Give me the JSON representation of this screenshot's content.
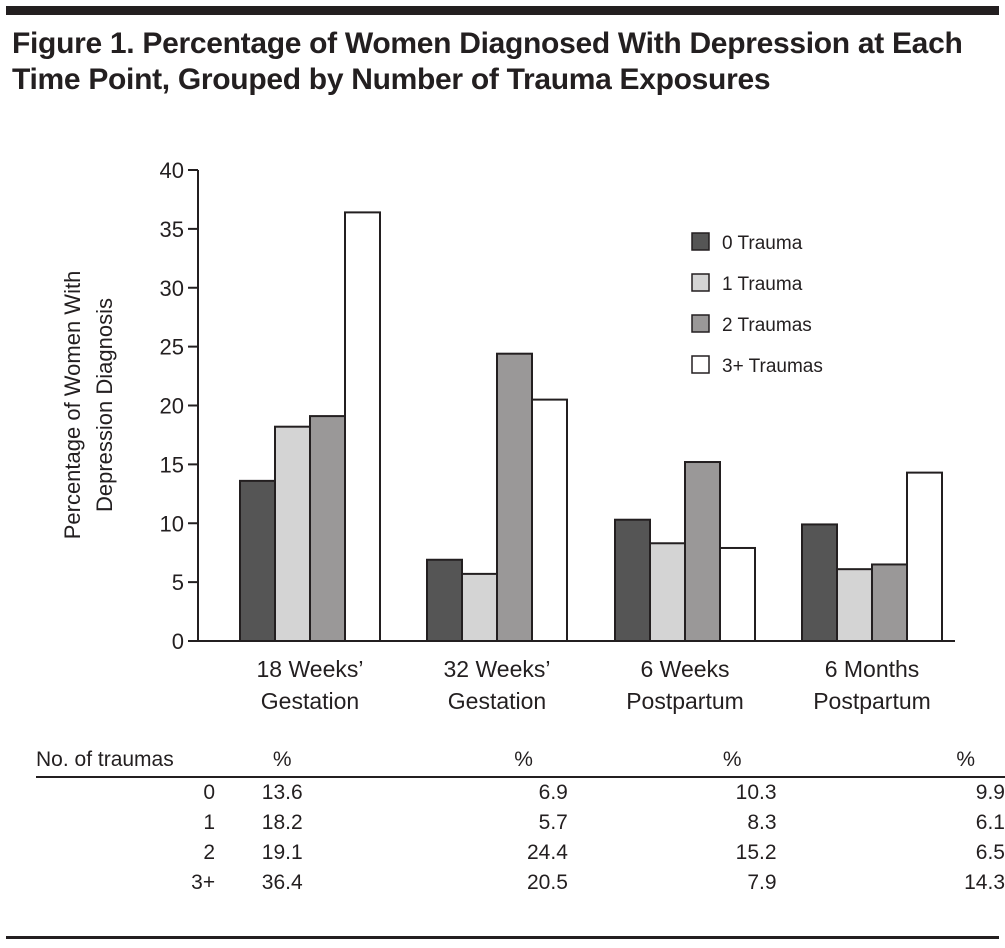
{
  "figure": {
    "title": "Figure 1. Percentage of Women Diagnosed With Depression at Each Time Point, Grouped by Number of Trauma Exposures"
  },
  "chart_data": {
    "type": "bar",
    "title": "Figure 1. Percentage of Women Diagnosed With Depression at Each Time Point, Grouped by Number of Trauma Exposures",
    "xlabel": "",
    "ylabel": "Percentage of Women With Depression Diagnosis",
    "ylabel_lines": [
      "Percentage of Women With",
      "Depression Diagnosis"
    ],
    "ylim": [
      0,
      40
    ],
    "yticks": [
      0,
      5,
      10,
      15,
      20,
      25,
      30,
      35,
      40
    ],
    "grid": false,
    "legend_position": "top-right",
    "categories": [
      "18 Weeks' Gestation",
      "32 Weeks' Gestation",
      "6 Weeks Postpartum",
      "6 Months Postpartum"
    ],
    "category_lines": [
      [
        "18 Weeks’",
        "Gestation"
      ],
      [
        "32 Weeks’",
        "Gestation"
      ],
      [
        "6 Weeks",
        "Postpartum"
      ],
      [
        "6 Months",
        "Postpartum"
      ]
    ],
    "series": [
      {
        "name": "0 Trauma",
        "color": "#555555",
        "values": [
          13.6,
          6.9,
          10.3,
          9.9
        ]
      },
      {
        "name": "1 Trauma",
        "color": "#d4d4d4",
        "values": [
          18.2,
          5.7,
          8.3,
          6.1
        ]
      },
      {
        "name": "2 Traumas",
        "color": "#9a9898",
        "values": [
          19.1,
          24.4,
          15.2,
          6.5
        ]
      },
      {
        "name": "3+ Traumas",
        "color": "#ffffff",
        "values": [
          36.4,
          20.5,
          7.9,
          14.3
        ]
      }
    ]
  },
  "table": {
    "headers": [
      "No. of traumas",
      "%",
      "%",
      "%",
      "%"
    ],
    "rows": [
      [
        "0",
        "13.6",
        "6.9",
        "10.3",
        "9.9"
      ],
      [
        "1",
        "18.2",
        "5.7",
        "8.3",
        "6.1"
      ],
      [
        "2",
        "19.1",
        "24.4",
        "15.2",
        "6.5"
      ],
      [
        "3+",
        "36.4",
        "20.5",
        "7.9",
        "14.3"
      ]
    ]
  }
}
